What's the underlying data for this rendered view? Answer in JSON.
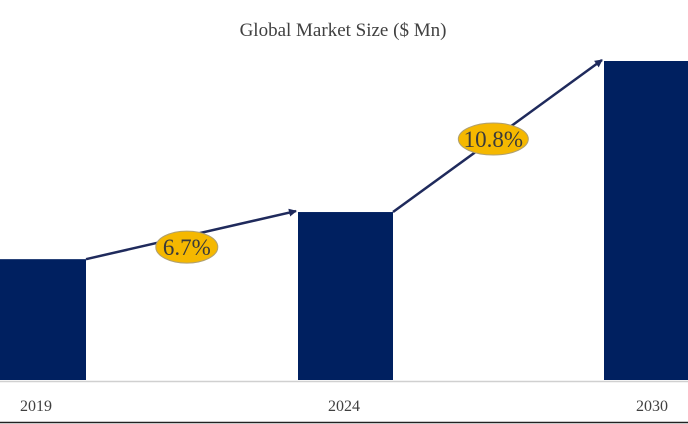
{
  "chart_data": {
    "type": "bar",
    "title": "Global Market Size ($ Mn)",
    "categories": [
      "2019",
      "2024",
      "2030"
    ],
    "values": [
      100,
      139,
      264
    ],
    "value_note": "relative bar heights; no value axis shown",
    "ylim": [
      0,
      264
    ],
    "xlabel": "",
    "ylabel": "",
    "grid": false,
    "annotations": [
      {
        "text": "6.7%",
        "from": "2019",
        "to": "2024"
      },
      {
        "text": "10.8%",
        "from": "2024",
        "to": "2030"
      }
    ],
    "colors": {
      "bar": "#002060",
      "badge": "#F5B800",
      "arrow": "#1F2A5C",
      "text": "#404040"
    }
  }
}
